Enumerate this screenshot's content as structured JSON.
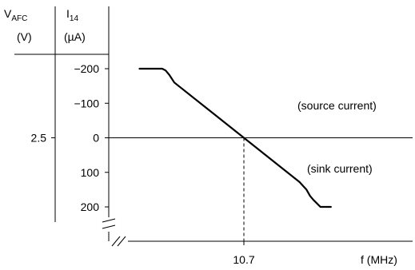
{
  "chart_data": {
    "type": "line",
    "header": {
      "vafc_symbol": "V",
      "vafc_subscript": "AFC",
      "vafc_unit": "(V)",
      "i14_symbol": "I",
      "i14_subscript": "14",
      "i14_unit": "(µA)"
    },
    "xlabel": "f (MHz)",
    "x_ticks": [
      {
        "value": 10.7,
        "label": "10.7"
      }
    ],
    "y_ticks": [
      {
        "value": -200,
        "label": "−200"
      },
      {
        "value": -100,
        "label": "−100"
      },
      {
        "value": 0,
        "label": "0"
      },
      {
        "value": 100,
        "label": "100"
      },
      {
        "value": 200,
        "label": "200"
      }
    ],
    "vafc_ticks": [
      {
        "value": 0,
        "label": "2.5"
      }
    ],
    "ylim": [
      -200,
      200
    ],
    "inverted_y": true,
    "reference_line_y": 0,
    "reference_line_x": 10.7,
    "axis_breaks": [
      "x",
      "y"
    ],
    "annotations": [
      "(source current)",
      "(sink current)"
    ],
    "series": [
      {
        "color": "#000000",
        "points": [
          [
            10.4,
            -200
          ],
          [
            10.465,
            -200
          ],
          [
            10.475,
            -195
          ],
          [
            10.485,
            -183
          ],
          [
            10.5,
            -160
          ],
          [
            10.6,
            -80
          ],
          [
            10.7,
            0
          ],
          [
            10.8,
            80
          ],
          [
            10.86,
            128
          ],
          [
            10.88,
            150
          ],
          [
            10.89,
            168
          ],
          [
            10.9,
            180
          ],
          [
            10.91,
            190
          ],
          [
            10.92,
            200
          ],
          [
            10.95,
            200
          ]
        ]
      }
    ]
  }
}
